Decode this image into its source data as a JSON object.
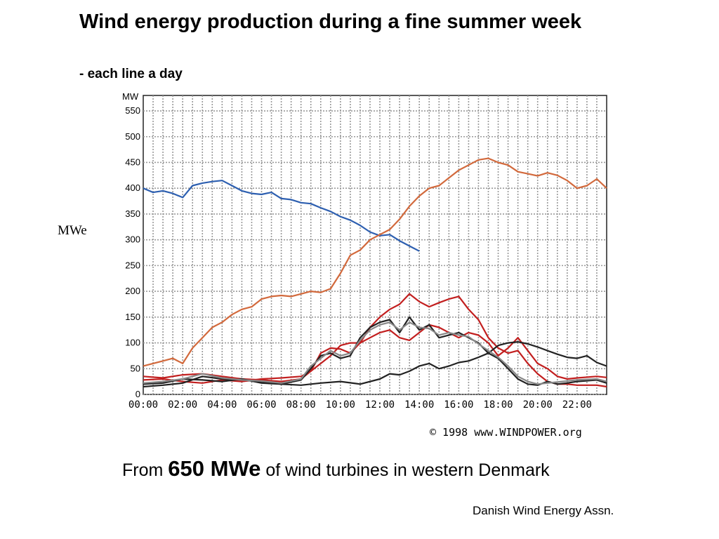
{
  "slide": {
    "title": "Wind energy production during a fine summer week",
    "subtitle": "- each line a day",
    "side_label": "MWe",
    "caption_pre": "From ",
    "caption_big": "650 MWe",
    "caption_post": " of wind turbines in western Denmark",
    "source": "Danish Wind Energy Assn."
  },
  "chart_data": {
    "type": "line",
    "ylabel": "MW",
    "copyright": "© 1998 www.WINDPOWER.org",
    "xlim": [
      0,
      23.5
    ],
    "ylim": [
      0,
      580
    ],
    "y_ticks": [
      0,
      50,
      100,
      150,
      200,
      250,
      300,
      350,
      400,
      450,
      500,
      550
    ],
    "x_ticks": [
      "00:00",
      "02:00",
      "04:00",
      "06:00",
      "08:00",
      "10:00",
      "12:00",
      "14:00",
      "16:00",
      "18:00",
      "20:00",
      "22:00"
    ],
    "x_tick_values": [
      0,
      2,
      4,
      6,
      8,
      10,
      12,
      14,
      16,
      18,
      20,
      22
    ],
    "grid": true,
    "colors": {
      "blue": "#2d5fb0",
      "orange": "#d2693c",
      "red": "#c21f1f",
      "black": "#222222",
      "grey": "#888888"
    },
    "series": [
      {
        "color": "blue",
        "x": [
          0,
          0.5,
          1,
          1.5,
          2,
          2.5,
          3,
          3.5,
          4,
          4.5,
          5,
          5.5,
          6,
          6.5,
          7,
          7.5,
          8,
          8.5,
          9,
          9.5,
          10,
          10.5,
          11,
          11.5,
          12,
          12.5,
          13,
          13.5,
          14
        ],
        "y": [
          400,
          392,
          395,
          390,
          382,
          405,
          410,
          413,
          415,
          405,
          395,
          390,
          388,
          392,
          380,
          378,
          372,
          370,
          362,
          355,
          345,
          338,
          328,
          315,
          308,
          310,
          298,
          288,
          278
        ]
      },
      {
        "color": "orange",
        "x": [
          0,
          0.5,
          1,
          1.5,
          2,
          2.5,
          3,
          3.5,
          4,
          4.5,
          5,
          5.5,
          6,
          6.5,
          7,
          7.5,
          8,
          8.5,
          9,
          9.5,
          10,
          10.5,
          11,
          11.5,
          12,
          12.5,
          13,
          13.5,
          14,
          14.5,
          15,
          15.5,
          16,
          16.5,
          17,
          17.5,
          18,
          18.5,
          19,
          19.5,
          20,
          20.5,
          21,
          21.5,
          22,
          22.5,
          23,
          23.5
        ],
        "y": [
          55,
          60,
          65,
          70,
          60,
          90,
          110,
          130,
          140,
          155,
          165,
          170,
          185,
          190,
          192,
          190,
          195,
          200,
          198,
          205,
          235,
          270,
          280,
          300,
          310,
          320,
          340,
          365,
          385,
          400,
          405,
          420,
          435,
          445,
          455,
          458,
          450,
          445,
          432,
          428,
          424,
          430,
          425,
          415,
          400,
          405,
          418,
          400
        ]
      },
      {
        "color": "red",
        "x": [
          0,
          1,
          2,
          3,
          4,
          5,
          6,
          7,
          8,
          8.5,
          9,
          9.5,
          10,
          10.5,
          11,
          11.5,
          12,
          12.5,
          13,
          13.5,
          14,
          14.5,
          15,
          15.5,
          16,
          16.5,
          17,
          17.5,
          18,
          18.5,
          19,
          19.5,
          20,
          20.5,
          21,
          21.5,
          22,
          23,
          23.5
        ],
        "y": [
          28,
          30,
          25,
          22,
          28,
          25,
          30,
          32,
          35,
          45,
          80,
          90,
          88,
          80,
          100,
          130,
          150,
          165,
          175,
          195,
          180,
          170,
          178,
          185,
          190,
          165,
          145,
          110,
          90,
          80,
          85,
          60,
          40,
          25,
          20,
          20,
          18,
          18,
          15
        ]
      },
      {
        "color": "red",
        "x": [
          0,
          1,
          2,
          3,
          4,
          5,
          6,
          7,
          8,
          8.5,
          9,
          9.5,
          10,
          10.5,
          11,
          11.5,
          12,
          12.5,
          13,
          13.5,
          14,
          14.5,
          15,
          15.5,
          16,
          16.5,
          17,
          17.5,
          18,
          18.5,
          19,
          19.5,
          20,
          20.5,
          21,
          21.5,
          22,
          23,
          23.5
        ],
        "y": [
          35,
          32,
          38,
          40,
          35,
          30,
          28,
          25,
          30,
          45,
          60,
          75,
          95,
          100,
          100,
          110,
          120,
          125,
          110,
          105,
          120,
          135,
          130,
          120,
          110,
          120,
          115,
          100,
          75,
          90,
          110,
          85,
          60,
          50,
          35,
          30,
          32,
          35,
          33
        ]
      },
      {
        "color": "black",
        "x": [
          0,
          1,
          2,
          3,
          4,
          5,
          6,
          7,
          8,
          9,
          10,
          11,
          12,
          12.5,
          13,
          13.5,
          14,
          14.5,
          15,
          15.5,
          16,
          16.5,
          17,
          17.5,
          18,
          18.5,
          19,
          19.5,
          20,
          20.5,
          21,
          21.5,
          22,
          22.5,
          23,
          23.5
        ],
        "y": [
          20,
          22,
          30,
          28,
          25,
          30,
          22,
          20,
          18,
          22,
          25,
          20,
          30,
          40,
          38,
          45,
          55,
          60,
          50,
          55,
          62,
          65,
          72,
          80,
          95,
          100,
          102,
          98,
          92,
          85,
          78,
          72,
          70,
          75,
          62,
          55
        ]
      },
      {
        "color": "black",
        "x": [
          0,
          1,
          2,
          3,
          4,
          5,
          6,
          7,
          8,
          8.5,
          9,
          9.5,
          10,
          10.5,
          11,
          11.5,
          12,
          12.5,
          13,
          13.5,
          14,
          14.5,
          15,
          15.5,
          16,
          16.5,
          17,
          17.5,
          18,
          18.5,
          19,
          19.5,
          20,
          20.5,
          21,
          21.5,
          22,
          23,
          23.5
        ],
        "y": [
          15,
          18,
          22,
          35,
          30,
          28,
          25,
          20,
          28,
          50,
          75,
          80,
          70,
          75,
          110,
          130,
          140,
          145,
          120,
          150,
          125,
          135,
          110,
          115,
          120,
          110,
          100,
          80,
          70,
          50,
          30,
          20,
          18,
          25,
          20,
          22,
          25,
          28,
          22
        ]
      },
      {
        "color": "grey",
        "x": [
          0,
          1,
          2,
          3,
          4,
          5,
          6,
          7,
          8,
          8.5,
          9,
          9.5,
          10,
          10.5,
          11,
          11.5,
          12,
          12.5,
          13,
          13.5,
          14,
          14.5,
          15,
          15.5,
          16,
          16.5,
          17,
          17.5,
          18,
          18.5,
          19,
          19.5,
          20,
          20.5,
          21,
          21.5,
          22,
          23,
          23.5
        ],
        "y": [
          22,
          25,
          30,
          40,
          32,
          28,
          26,
          22,
          30,
          55,
          70,
          85,
          75,
          80,
          105,
          125,
          135,
          140,
          125,
          140,
          130,
          128,
          115,
          120,
          115,
          112,
          98,
          85,
          72,
          55,
          35,
          25,
          20,
          22,
          24,
          26,
          28,
          30,
          25
        ]
      }
    ]
  }
}
